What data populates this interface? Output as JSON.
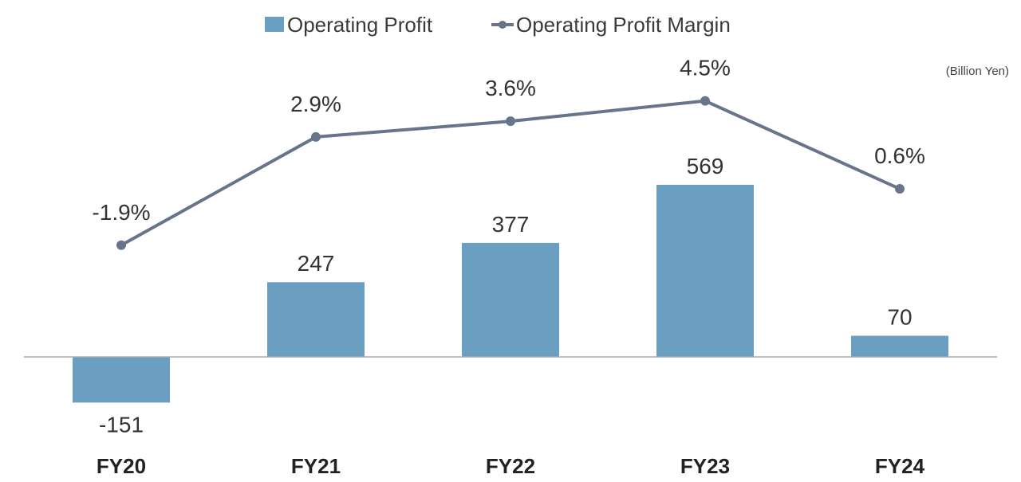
{
  "legend": {
    "bar_label": "Operating Profit",
    "line_label": "Operating Profit Margin"
  },
  "unit": "(Billion Yen)",
  "colors": {
    "bar": "#6a9fc2",
    "line": "#677489",
    "axis": "#aaaaaa"
  },
  "chart_data": {
    "type": "bar",
    "categories": [
      "FY20",
      "FY21",
      "FY22",
      "FY23",
      "FY24"
    ],
    "series": [
      {
        "name": "Operating Profit",
        "type": "bar",
        "values": [
          -151,
          247,
          377,
          569,
          70
        ],
        "labels": [
          "-151",
          "247",
          "377",
          "569",
          "70"
        ]
      },
      {
        "name": "Operating Profit Margin",
        "type": "line",
        "values": [
          -1.9,
          2.9,
          3.6,
          4.5,
          0.6
        ],
        "labels": [
          "-1.9%",
          "2.9%",
          "3.6%",
          "4.5%",
          "0.6%"
        ]
      }
    ],
    "legend_position": "top-center"
  }
}
